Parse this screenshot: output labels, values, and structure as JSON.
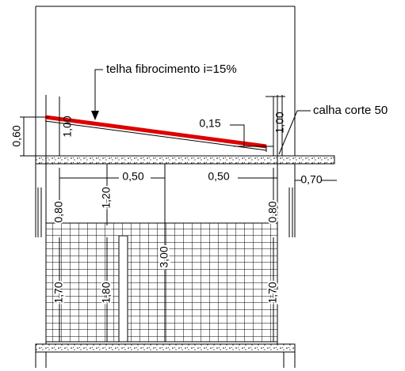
{
  "annotations": {
    "roof": "telha fibrocimento i=15%",
    "gutter": "calha corte 50"
  },
  "dimensions": [
    "1,00",
    "0,60",
    "0,15",
    "1,00",
    "0,50",
    "0,50",
    "0,70",
    "1,20",
    "3,00",
    "0,80",
    "0,80",
    "1,70",
    "1,80",
    "1,70"
  ]
}
